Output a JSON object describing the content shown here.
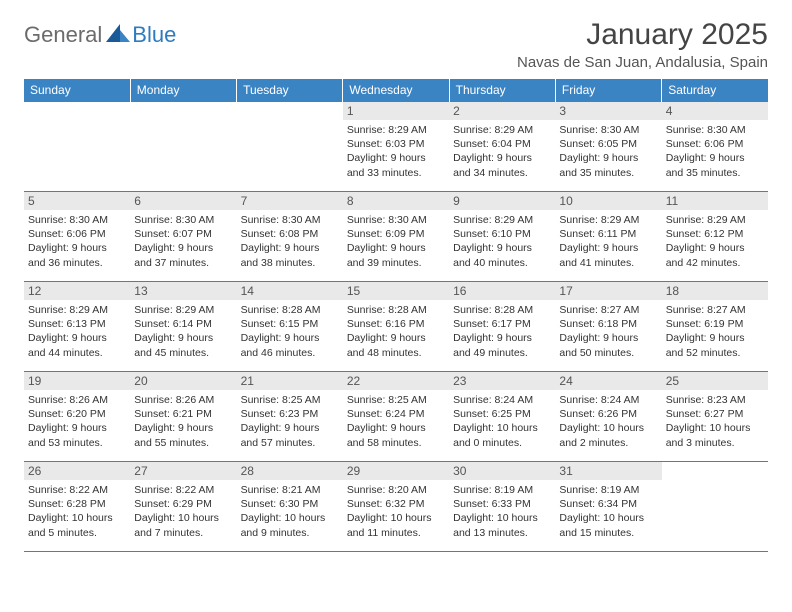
{
  "logo": {
    "text1": "General",
    "text2": "Blue"
  },
  "title": "January 2025",
  "location": "Navas de San Juan, Andalusia, Spain",
  "colors": {
    "header_bg": "#3b84c4",
    "header_text": "#ffffff",
    "daynum_bg": "#e9e9e9",
    "border": "#3b84c4",
    "logo_gray": "#6b6b6b",
    "logo_blue": "#2f7bbf"
  },
  "weekdays": [
    "Sunday",
    "Monday",
    "Tuesday",
    "Wednesday",
    "Thursday",
    "Friday",
    "Saturday"
  ],
  "weeks": [
    [
      null,
      null,
      null,
      {
        "n": "1",
        "sr": "Sunrise: 8:29 AM",
        "ss": "Sunset: 6:03 PM",
        "dl": "Daylight: 9 hours and 33 minutes."
      },
      {
        "n": "2",
        "sr": "Sunrise: 8:29 AM",
        "ss": "Sunset: 6:04 PM",
        "dl": "Daylight: 9 hours and 34 minutes."
      },
      {
        "n": "3",
        "sr": "Sunrise: 8:30 AM",
        "ss": "Sunset: 6:05 PM",
        "dl": "Daylight: 9 hours and 35 minutes."
      },
      {
        "n": "4",
        "sr": "Sunrise: 8:30 AM",
        "ss": "Sunset: 6:06 PM",
        "dl": "Daylight: 9 hours and 35 minutes."
      }
    ],
    [
      {
        "n": "5",
        "sr": "Sunrise: 8:30 AM",
        "ss": "Sunset: 6:06 PM",
        "dl": "Daylight: 9 hours and 36 minutes."
      },
      {
        "n": "6",
        "sr": "Sunrise: 8:30 AM",
        "ss": "Sunset: 6:07 PM",
        "dl": "Daylight: 9 hours and 37 minutes."
      },
      {
        "n": "7",
        "sr": "Sunrise: 8:30 AM",
        "ss": "Sunset: 6:08 PM",
        "dl": "Daylight: 9 hours and 38 minutes."
      },
      {
        "n": "8",
        "sr": "Sunrise: 8:30 AM",
        "ss": "Sunset: 6:09 PM",
        "dl": "Daylight: 9 hours and 39 minutes."
      },
      {
        "n": "9",
        "sr": "Sunrise: 8:29 AM",
        "ss": "Sunset: 6:10 PM",
        "dl": "Daylight: 9 hours and 40 minutes."
      },
      {
        "n": "10",
        "sr": "Sunrise: 8:29 AM",
        "ss": "Sunset: 6:11 PM",
        "dl": "Daylight: 9 hours and 41 minutes."
      },
      {
        "n": "11",
        "sr": "Sunrise: 8:29 AM",
        "ss": "Sunset: 6:12 PM",
        "dl": "Daylight: 9 hours and 42 minutes."
      }
    ],
    [
      {
        "n": "12",
        "sr": "Sunrise: 8:29 AM",
        "ss": "Sunset: 6:13 PM",
        "dl": "Daylight: 9 hours and 44 minutes."
      },
      {
        "n": "13",
        "sr": "Sunrise: 8:29 AM",
        "ss": "Sunset: 6:14 PM",
        "dl": "Daylight: 9 hours and 45 minutes."
      },
      {
        "n": "14",
        "sr": "Sunrise: 8:28 AM",
        "ss": "Sunset: 6:15 PM",
        "dl": "Daylight: 9 hours and 46 minutes."
      },
      {
        "n": "15",
        "sr": "Sunrise: 8:28 AM",
        "ss": "Sunset: 6:16 PM",
        "dl": "Daylight: 9 hours and 48 minutes."
      },
      {
        "n": "16",
        "sr": "Sunrise: 8:28 AM",
        "ss": "Sunset: 6:17 PM",
        "dl": "Daylight: 9 hours and 49 minutes."
      },
      {
        "n": "17",
        "sr": "Sunrise: 8:27 AM",
        "ss": "Sunset: 6:18 PM",
        "dl": "Daylight: 9 hours and 50 minutes."
      },
      {
        "n": "18",
        "sr": "Sunrise: 8:27 AM",
        "ss": "Sunset: 6:19 PM",
        "dl": "Daylight: 9 hours and 52 minutes."
      }
    ],
    [
      {
        "n": "19",
        "sr": "Sunrise: 8:26 AM",
        "ss": "Sunset: 6:20 PM",
        "dl": "Daylight: 9 hours and 53 minutes."
      },
      {
        "n": "20",
        "sr": "Sunrise: 8:26 AM",
        "ss": "Sunset: 6:21 PM",
        "dl": "Daylight: 9 hours and 55 minutes."
      },
      {
        "n": "21",
        "sr": "Sunrise: 8:25 AM",
        "ss": "Sunset: 6:23 PM",
        "dl": "Daylight: 9 hours and 57 minutes."
      },
      {
        "n": "22",
        "sr": "Sunrise: 8:25 AM",
        "ss": "Sunset: 6:24 PM",
        "dl": "Daylight: 9 hours and 58 minutes."
      },
      {
        "n": "23",
        "sr": "Sunrise: 8:24 AM",
        "ss": "Sunset: 6:25 PM",
        "dl": "Daylight: 10 hours and 0 minutes."
      },
      {
        "n": "24",
        "sr": "Sunrise: 8:24 AM",
        "ss": "Sunset: 6:26 PM",
        "dl": "Daylight: 10 hours and 2 minutes."
      },
      {
        "n": "25",
        "sr": "Sunrise: 8:23 AM",
        "ss": "Sunset: 6:27 PM",
        "dl": "Daylight: 10 hours and 3 minutes."
      }
    ],
    [
      {
        "n": "26",
        "sr": "Sunrise: 8:22 AM",
        "ss": "Sunset: 6:28 PM",
        "dl": "Daylight: 10 hours and 5 minutes."
      },
      {
        "n": "27",
        "sr": "Sunrise: 8:22 AM",
        "ss": "Sunset: 6:29 PM",
        "dl": "Daylight: 10 hours and 7 minutes."
      },
      {
        "n": "28",
        "sr": "Sunrise: 8:21 AM",
        "ss": "Sunset: 6:30 PM",
        "dl": "Daylight: 10 hours and 9 minutes."
      },
      {
        "n": "29",
        "sr": "Sunrise: 8:20 AM",
        "ss": "Sunset: 6:32 PM",
        "dl": "Daylight: 10 hours and 11 minutes."
      },
      {
        "n": "30",
        "sr": "Sunrise: 8:19 AM",
        "ss": "Sunset: 6:33 PM",
        "dl": "Daylight: 10 hours and 13 minutes."
      },
      {
        "n": "31",
        "sr": "Sunrise: 8:19 AM",
        "ss": "Sunset: 6:34 PM",
        "dl": "Daylight: 10 hours and 15 minutes."
      },
      null
    ]
  ]
}
